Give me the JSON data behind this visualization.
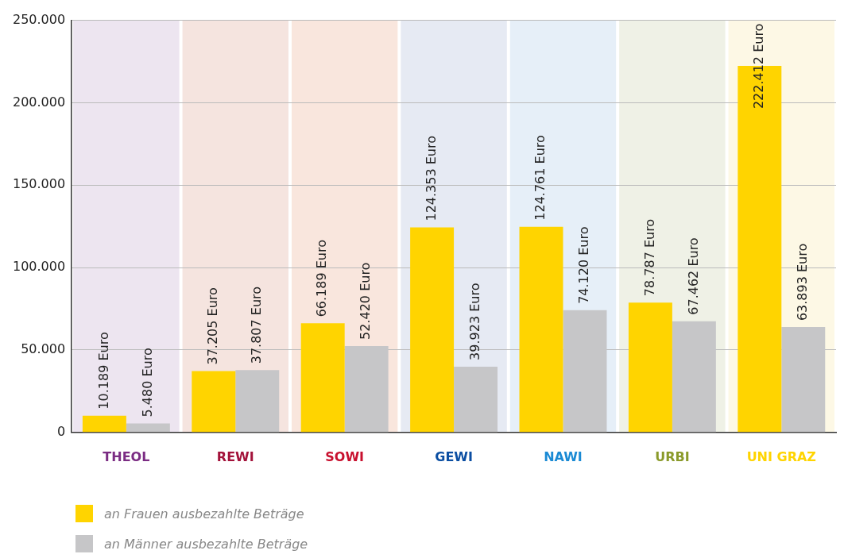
{
  "chart_data": {
    "type": "bar",
    "categories": [
      "THEOL",
      "REWI",
      "SOWI",
      "GEWI",
      "NAWI",
      "URBI",
      "UNI GRAZ"
    ],
    "series": [
      {
        "name": "an Frauen ausbezahlte Beträge",
        "color": "#ffd400",
        "values": [
          10189,
          37205,
          66189,
          124353,
          124761,
          78787,
          222412
        ],
        "value_labels": [
          "10.189 Euro",
          "37.205 Euro",
          "66.189 Euro",
          "124.353 Euro",
          "124.761 Euro",
          "78.787 Euro",
          "222.412 Euro"
        ]
      },
      {
        "name": "an Männer ausbezahlte Beträge",
        "color": "#c6c6c8",
        "values": [
          5480,
          37807,
          52420,
          39923,
          74120,
          67462,
          63893
        ],
        "value_labels": [
          "5.480 Euro",
          "37.807 Euro",
          "52.420 Euro",
          "39.923 Euro",
          "74.120 Euro",
          "67.462 Euro",
          "63.893 Euro"
        ]
      }
    ],
    "ylim": [
      0,
      250000
    ],
    "yticks": [
      0,
      {
        "value": 50000,
        "label": "50.000"
      },
      {
        "value": 100000,
        "label": "100.000"
      },
      {
        "value": 150000,
        "label": "150.000"
      },
      {
        "value": 200000,
        "label": "200.000"
      },
      {
        "value": 250000,
        "label": "250.000"
      }
    ],
    "grid": "y",
    "legend": "bottom left",
    "bands": [
      {
        "axis": "x",
        "from": "THEOL",
        "to": "THEOL",
        "color": "#ede5f0"
      },
      {
        "axis": "x",
        "from": "REWI",
        "to": "REWI",
        "color": "#f5e4df"
      },
      {
        "axis": "x",
        "from": "SOWI",
        "to": "SOWI",
        "color": "#f9e6dd"
      },
      {
        "axis": "x",
        "from": "GEWI",
        "to": "GEWI",
        "color": "#e6eaf3"
      },
      {
        "axis": "x",
        "from": "NAWI",
        "to": "NAWI",
        "color": "#e6eff8"
      },
      {
        "axis": "x",
        "from": "URBI",
        "to": "URBI",
        "color": "#eff1e6"
      },
      {
        "axis": "x",
        "from": "UNI GRAZ",
        "to": "UNI GRAZ",
        "color": "#fdf8e5"
      }
    ]
  }
}
